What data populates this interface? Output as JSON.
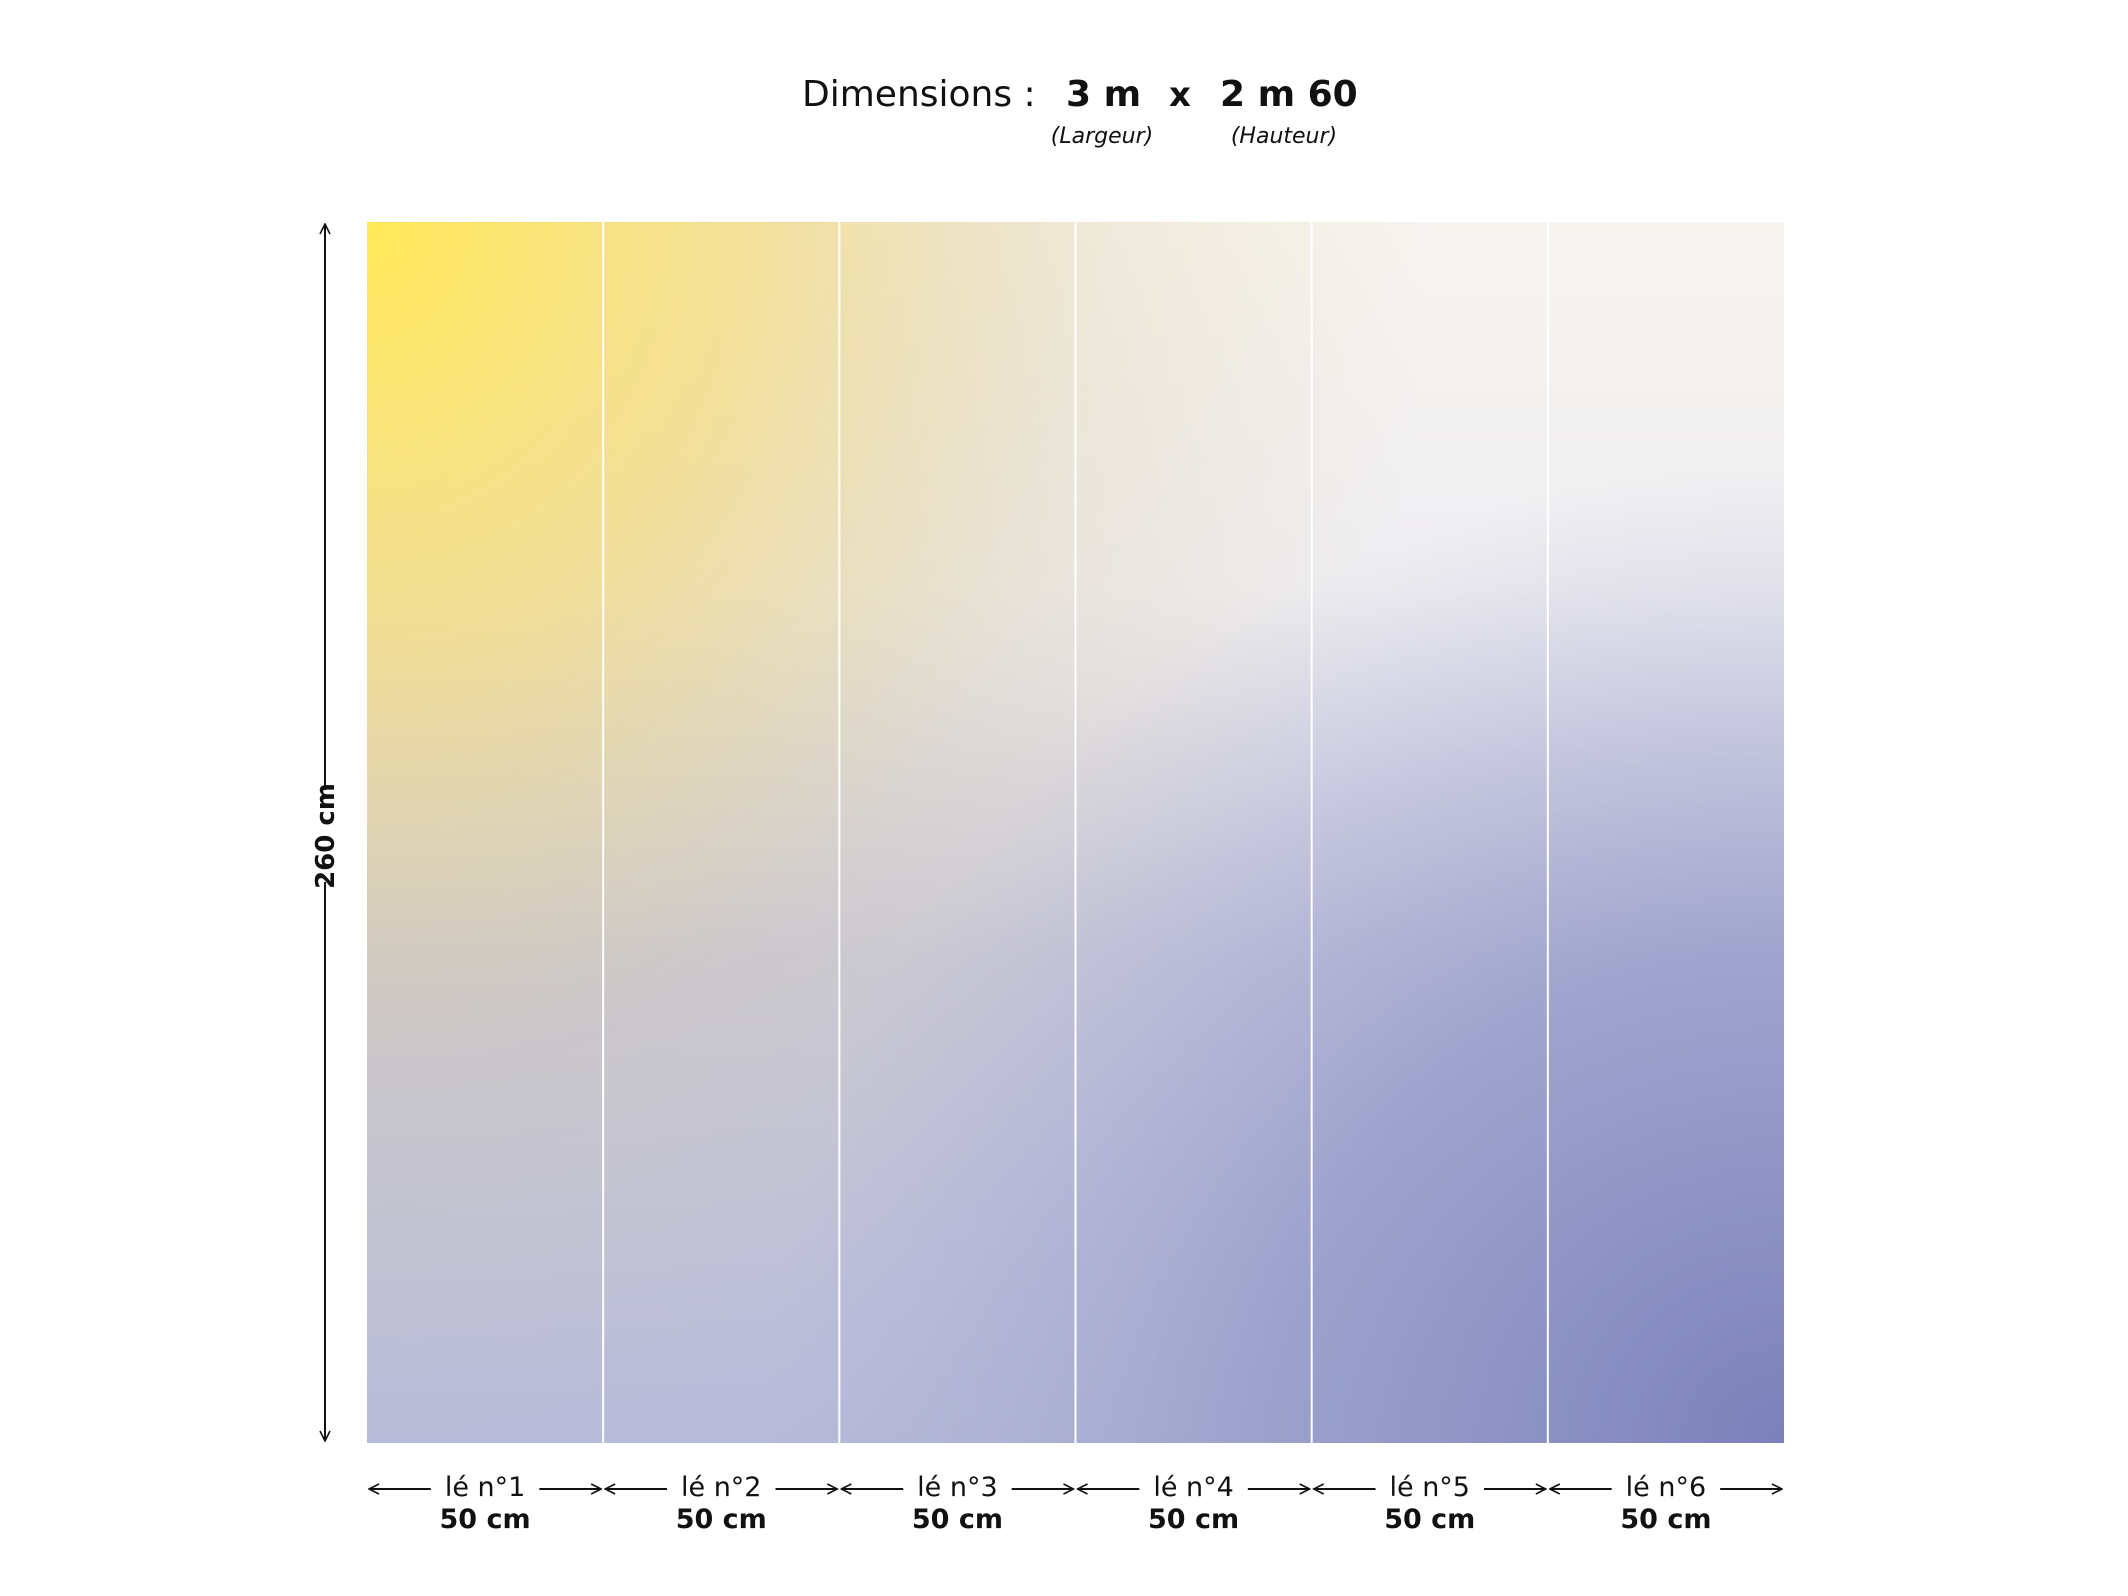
{
  "header": {
    "label": "Dimensions :",
    "width": "3 m",
    "separator": "x",
    "height": "2 m 60",
    "width_caption": "(Largeur)",
    "height_caption": "(Hauteur)"
  },
  "height_label": "260 cm",
  "panels": [
    {
      "label": "lé n°1",
      "width": "50 cm"
    },
    {
      "label": "lé n°2",
      "width": "50 cm"
    },
    {
      "label": "lé n°3",
      "width": "50 cm"
    },
    {
      "label": "lé n°4",
      "width": "50 cm"
    },
    {
      "label": "lé n°5",
      "width": "50 cm"
    },
    {
      "label": "lé n°6",
      "width": "50 cm"
    }
  ]
}
